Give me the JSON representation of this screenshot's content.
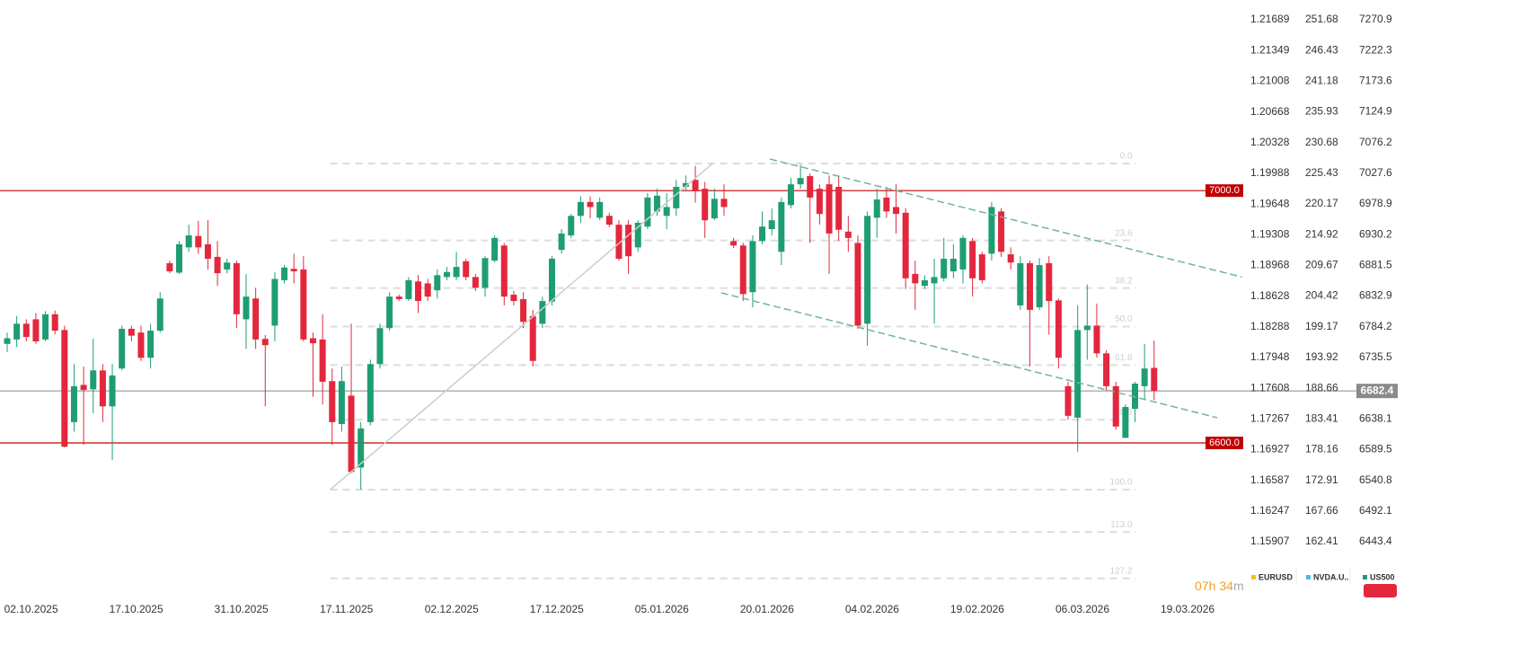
{
  "chart_data": {
    "type": "candlestick",
    "open": [
      6757,
      6764,
      6789,
      6796,
      6764,
      6804,
      6779,
      6633,
      6692,
      6685,
      6715,
      6658,
      6718,
      6781,
      6775,
      6735,
      6778,
      6885,
      6870,
      6910,
      6928,
      6915,
      6895,
      6875,
      6885,
      6796,
      6829,
      6765,
      6786,
      6858,
      6876,
      6875,
      6766,
      6764,
      6698,
      6630,
      6675,
      6561,
      6633,
      6725,
      6782,
      6832,
      6828,
      6856,
      6853,
      6842,
      6863,
      6863,
      6888,
      6863,
      6846,
      6889,
      6913,
      6835,
      6828,
      6801,
      6789,
      6824,
      6906,
      6929,
      6960,
      6982,
      6957,
      6960,
      6946,
      6946,
      6910,
      6943,
      6967,
      6960,
      6972,
      7006,
      7017,
      7003,
      6956,
      6987,
      6920,
      6913,
      6839,
      6920,
      6939,
      6903,
      6977,
      7010,
      7023,
      7003,
      7010,
      7006,
      6935,
      6917,
      6789,
      6957,
      6989,
      6974,
      6965,
      6868,
      6849,
      6853,
      6861,
      6872,
      6875,
      6920,
      6899,
      6900,
      6967,
      6899,
      6818,
      6885,
      6815,
      6885,
      6826,
      6690,
      6640,
      6779,
      6786,
      6742,
      6690,
      6608,
      6654,
      6690,
      6719
    ],
    "high": [
      6775,
      6801,
      6796,
      6806,
      6809,
      6810,
      6786,
      6725,
      6721,
      6765,
      6725,
      6725,
      6786,
      6786,
      6786,
      6789,
      6839,
      6889,
      6920,
      6946,
      6952,
      6953,
      6920,
      6892,
      6889,
      6868,
      6846,
      6771,
      6871,
      6882,
      6900,
      6896,
      6775,
      6804,
      6718,
      6721,
      6789,
      6633,
      6732,
      6789,
      6839,
      6835,
      6863,
      6866,
      6860,
      6875,
      6879,
      6903,
      6892,
      6868,
      6896,
      6929,
      6917,
      6841,
      6839,
      6811,
      6832,
      6896,
      6939,
      6963,
      6991,
      6991,
      6989,
      6965,
      6953,
      6953,
      6953,
      6996,
      7003,
      6996,
      7017,
      7024,
      7039,
      7014,
      7003,
      7010,
      6925,
      6917,
      6929,
      6967,
      6972,
      6989,
      7020,
      7041,
      7027,
      7010,
      7024,
      7024,
      6960,
      6929,
      6967,
      7003,
      7006,
      7010,
      6972,
      6889,
      6866,
      6892,
      6925,
      6915,
      6929,
      6925,
      6903,
      6982,
      6972,
      6910,
      6896,
      6889,
      6893,
      6896,
      6829,
      6697,
      6818,
      6851,
      6821,
      6747,
      6697,
      6661,
      6697,
      6757,
      6762
    ],
    "low": [
      6744,
      6752,
      6761,
      6757,
      6761,
      6772,
      6593,
      6618,
      6597,
      6647,
      6633,
      6573,
      6715,
      6761,
      6730,
      6718,
      6775,
      6869,
      6868,
      6903,
      6900,
      6875,
      6849,
      6869,
      6782,
      6749,
      6749,
      6658,
      6761,
      6853,
      6853,
      6761,
      6673,
      6661,
      6597,
      6618,
      6552,
      6526,
      6628,
      6718,
      6778,
      6825,
      6825,
      6806,
      6825,
      6829,
      6858,
      6858,
      6858,
      6841,
      6832,
      6886,
      6818,
      6818,
      6782,
      6722,
      6782,
      6818,
      6900,
      6925,
      6949,
      6956,
      6953,
      6942,
      6889,
      6868,
      6903,
      6939,
      6960,
      6939,
      6960,
      6999,
      6981,
      6925,
      6953,
      6960,
      6909,
      6825,
      6815,
      6915,
      6929,
      6882,
      6972,
      7003,
      6917,
      6946,
      6868,
      6920,
      6903,
      6781,
      6754,
      6925,
      6957,
      6932,
      6844,
      6811,
      6844,
      6789,
      6856,
      6861,
      6853,
      6832,
      6853,
      6889,
      6895,
      6875,
      6811,
      6721,
      6811,
      6772,
      6718,
      6637,
      6586,
      6732,
      6735,
      6683,
      6621,
      6608,
      6633,
      6668,
      6668
    ],
    "close": [
      6766,
      6789,
      6768,
      6761,
      6804,
      6778,
      6594,
      6690,
      6684,
      6715,
      6658,
      6707,
      6781,
      6770,
      6735,
      6778,
      6829,
      6872,
      6915,
      6929,
      6910,
      6892,
      6869,
      6886,
      6804,
      6832,
      6764,
      6755,
      6860,
      6878,
      6872,
      6764,
      6758,
      6697,
      6633,
      6698,
      6554,
      6623,
      6725,
      6782,
      6832,
      6828,
      6858,
      6825,
      6832,
      6866,
      6871,
      6879,
      6863,
      6846,
      6893,
      6925,
      6832,
      6825,
      6792,
      6730,
      6825,
      6892,
      6932,
      6960,
      6982,
      6974,
      6982,
      6946,
      6892,
      6896,
      6949,
      6989,
      6992,
      6974,
      7006,
      7012,
      6999,
      6953,
      6987,
      6974,
      6913,
      6836,
      6920,
      6943,
      6953,
      6982,
      7010,
      7020,
      6989,
      6963,
      6932,
      6938,
      6925,
      6786,
      6960,
      6986,
      6967,
      6963,
      6861,
      6853,
      6858,
      6863,
      6892,
      6892,
      6925,
      6861,
      6858,
      6974,
      6903,
      6886,
      6885,
      6811,
      6882,
      6825,
      6735,
      6643,
      6779,
      6786,
      6742,
      6690,
      6626,
      6657,
      6694,
      6718,
      6682.4
    ],
    "up_color": "#1f9d72",
    "down_color": "#e3273d",
    "xticks": [
      {
        "value": 2.5,
        "label": "02.10.2025"
      },
      {
        "value": 13.5,
        "label": "17.10.2025"
      },
      {
        "value": 24.5,
        "label": "31.10.2025"
      },
      {
        "value": 35.5,
        "label": "17.11.2025"
      },
      {
        "value": 46.5,
        "label": "02.12.2025"
      },
      {
        "value": 57.5,
        "label": "17.12.2025"
      },
      {
        "value": 68.5,
        "label": "05.01.2026"
      },
      {
        "value": 79.5,
        "label": "20.01.2026"
      },
      {
        "value": 90.5,
        "label": "04.02.2026"
      },
      {
        "value": 101.5,
        "label": "19.02.2026"
      },
      {
        "value": 112.5,
        "label": "06.03.2026"
      },
      {
        "value": 123.5,
        "label": "19.03.2026"
      }
    ],
    "ylim": [
      6362.2,
      7302.2
    ],
    "yticks": [
      7270.9,
      7222.3,
      7173.6,
      7124.9,
      7076.2,
      7027.6,
      6978.9,
      6930.2,
      6881.5,
      6832.9,
      6784.2,
      6735.5,
      6638.1,
      6589.5,
      6540.8,
      6492.1,
      6443.4
    ],
    "y2lim": [
      153.65,
      255.06
    ],
    "y2ticks": [
      251.68,
      246.43,
      241.18,
      235.93,
      230.68,
      225.43,
      220.17,
      214.92,
      209.67,
      204.42,
      199.17,
      193.92,
      188.66,
      183.41,
      178.16,
      172.91,
      167.66,
      162.41
    ],
    "y3lim": [
      1.1534,
      1.21908
    ],
    "y3ticks": [
      1.21689,
      1.21349,
      1.21008,
      1.20668,
      1.20328,
      1.19988,
      1.19648,
      1.19308,
      1.18968,
      1.18628,
      1.18288,
      1.17948,
      1.17608,
      1.17267,
      1.16927,
      1.16587,
      1.16247,
      1.15907
    ],
    "hlines": [
      {
        "value": 7000,
        "label": "7000.0"
      },
      {
        "value": 6600,
        "label": "6600.0"
      }
    ],
    "hline_color": "#c00000",
    "last_price": 6682.4,
    "fib": {
      "x": [
        33.8,
        118.1
      ],
      "high": 7043,
      "low": 6526,
      "levels": [
        {
          "value": 0,
          "label": "0.0"
        },
        23.6,
        38.2,
        {
          "value": 50,
          "label": "50.0"
        },
        61.8,
        78.6,
        {
          "value": 100,
          "label": "100.0"
        },
        {
          "value": 113,
          "label": "113.0"
        },
        127.2
      ]
    },
    "trendlines": [
      {
        "x": [
          33.8,
          73.8
        ],
        "y": [
          6526,
          7043
        ],
        "color": "#cccccc",
        "dashed": false
      },
      {
        "x": [
          79.8,
          129.2
        ],
        "y": [
          7050,
          6863
        ],
        "color": "#6fb59c",
        "dashed": true
      },
      {
        "x": [
          74.7,
          126.6
        ],
        "y": [
          6838,
          6640
        ],
        "color": "#6fb59c",
        "dashed": true
      }
    ],
    "legend": [
      {
        "name": "EURUSD",
        "color": "#f2c21b"
      },
      {
        "name": "NVDA.U..",
        "color": "#4fb8e6"
      },
      {
        "name": "US500",
        "color": "#1f9d72"
      }
    ],
    "timer": {
      "hours": "07h",
      "minutes": "34",
      "unit": "m"
    }
  }
}
